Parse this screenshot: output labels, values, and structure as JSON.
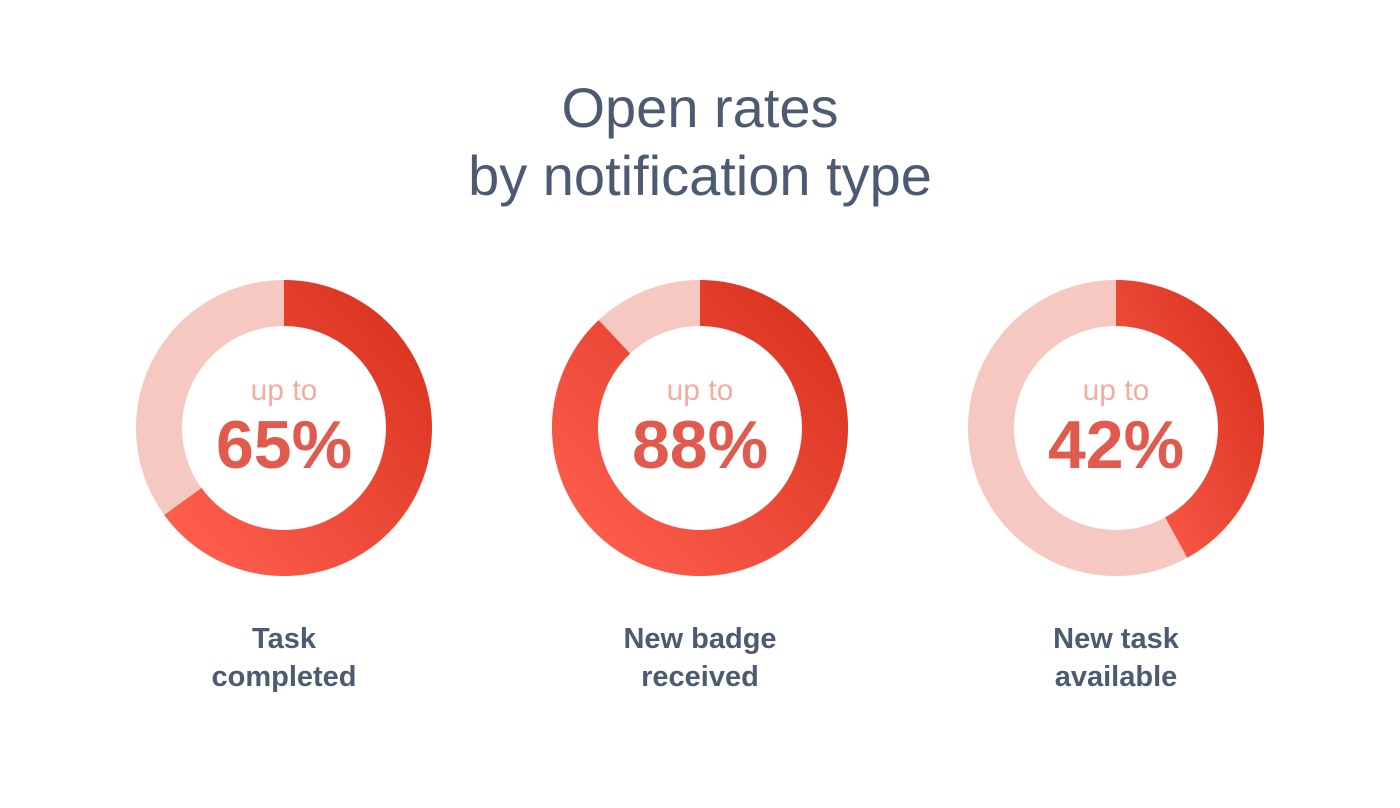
{
  "title": {
    "line1": "Open rates",
    "line2": "by notification type"
  },
  "colors": {
    "arc_start": "#ff5f4f",
    "arc_end": "#d9321f",
    "track": "#f6c8c2",
    "value_text": "#e05a4d",
    "prefix_text": "#f2aca3",
    "title_text": "#4d5b72"
  },
  "chart_data": {
    "type": "pie",
    "variant": "donut",
    "title": "Open rates by notification type",
    "value_prefix": "up to",
    "unit": "%",
    "items": [
      {
        "category_line1": "Task",
        "category_line2": "completed",
        "value": 65,
        "label": "65%"
      },
      {
        "category_line1": "New badge",
        "category_line2": "received",
        "value": 88,
        "label": "88%"
      },
      {
        "category_line1": "New task",
        "category_line2": "available",
        "value": 42,
        "label": "42%"
      }
    ]
  }
}
